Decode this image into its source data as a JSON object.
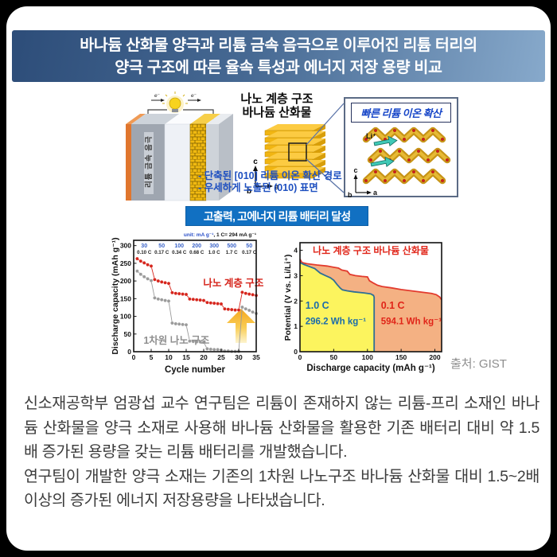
{
  "canvas": {
    "outer_bg": "#000000",
    "card_bg": "#ffffff"
  },
  "header": {
    "line1": "바나듐 산화물 양극과 리튬 금속 음극으로 이루어진 리튬 터리의",
    "line2": "양극 구조에 따른 율속 특성과 에너지 저장 용량 비교",
    "bg_left": "#2d4d79",
    "bg_right": "#87a9cb",
    "text_color": "#ffffff"
  },
  "figure": {
    "battery": {
      "anode_label": "리튬 금속 음극",
      "electron_label": "e⁻"
    },
    "nano_label": {
      "line1": "나노 계층 구조",
      "line2": "바나듐 산화물"
    },
    "axes": {
      "a": "a",
      "b": "b",
      "c": "c"
    },
    "diffusion": {
      "title": "빠른 리튬 이온 확산",
      "li_label": "Li⁺"
    },
    "bullets": [
      "- 단축된 [010] 리튬 이온 확산 경로",
      "- 우세하게 노출된 (010) 표면"
    ],
    "banner": {
      "text": "고출력, 고에너지 리튬 배터리 달성",
      "bg": "#1170c2"
    },
    "source": "출처: GIST"
  },
  "chart_data": [
    {
      "id": "cycle-chart",
      "type": "scatter",
      "xlabel": "Cycle number",
      "ylabel": "Discharge capacity (mAh g⁻¹)",
      "xlim": [
        0,
        35
      ],
      "ylim": [
        0,
        315
      ],
      "xticks": [
        0,
        5,
        10,
        15,
        20,
        25,
        30,
        35
      ],
      "yticks": [
        0,
        50,
        100,
        150,
        200,
        250,
        300
      ],
      "grid": false,
      "unit_note_blue": "unit: mA g⁻¹",
      "unit_note_black": ", 1 C= 294 mA g⁻¹",
      "rate_labels": {
        "centers": [
          3,
          8,
          13,
          18,
          23,
          28,
          33
        ],
        "rates": [
          "30",
          "50",
          "100",
          "200",
          "300",
          "500",
          "50"
        ],
        "c_rates": [
          "0.10 C",
          "0.17 C",
          "0.34 C",
          "0.68 C",
          "1.0 C",
          "1.7 C",
          "0.17 C"
        ]
      },
      "series": [
        {
          "name": "1차원 나노 구조",
          "color": "#9b9b9b",
          "label_color": "#8f8f8f",
          "label_pos": [
            2.8,
            22
          ],
          "label_anchor": "start",
          "points": [
            [
              1,
              228
            ],
            [
              2,
              219
            ],
            [
              3,
              212
            ],
            [
              4,
              206
            ],
            [
              5,
              201
            ],
            [
              6,
              152
            ],
            [
              7,
              149
            ],
            [
              8,
              147
            ],
            [
              9,
              145
            ],
            [
              10,
              143
            ],
            [
              11,
              81
            ],
            [
              12,
              79
            ],
            [
              13,
              78
            ],
            [
              14,
              77
            ],
            [
              15,
              76
            ],
            [
              16,
              30
            ],
            [
              17,
              29
            ],
            [
              18,
              28
            ],
            [
              19,
              28
            ],
            [
              20,
              27
            ],
            [
              21,
              8
            ],
            [
              22,
              7
            ],
            [
              23,
              6
            ],
            [
              24,
              6
            ],
            [
              25,
              5
            ],
            [
              26,
              2
            ],
            [
              27,
              2
            ],
            [
              28,
              1
            ],
            [
              29,
              1
            ],
            [
              30,
              1
            ],
            [
              31,
              126
            ],
            [
              32,
              121
            ],
            [
              33,
              117
            ],
            [
              34,
              112
            ],
            [
              35,
              108
            ]
          ]
        },
        {
          "name": "나노 계층 구조",
          "color": "#d6251c",
          "label_color": "#d6251c",
          "label_pos": [
            28.5,
            184
          ],
          "label_anchor": "middle",
          "points": [
            [
              1,
              263
            ],
            [
              2,
              256
            ],
            [
              3,
              251
            ],
            [
              4,
              246
            ],
            [
              5,
              242
            ],
            [
              6,
              204
            ],
            [
              7,
              200
            ],
            [
              8,
              197
            ],
            [
              9,
              195
            ],
            [
              10,
              193
            ],
            [
              11,
              167
            ],
            [
              12,
              165
            ],
            [
              13,
              164
            ],
            [
              14,
              163
            ],
            [
              15,
              162
            ],
            [
              16,
              149
            ],
            [
              17,
              148
            ],
            [
              18,
              147
            ],
            [
              19,
              146
            ],
            [
              20,
              145
            ],
            [
              21,
              139
            ],
            [
              22,
              138
            ],
            [
              23,
              137
            ],
            [
              24,
              136
            ],
            [
              25,
              135
            ],
            [
              26,
              121
            ],
            [
              27,
              120
            ],
            [
              28,
              119
            ],
            [
              29,
              118
            ],
            [
              30,
              118
            ],
            [
              31,
              168
            ],
            [
              32,
              165
            ],
            [
              33,
              163
            ],
            [
              34,
              161
            ],
            [
              35,
              159
            ]
          ]
        }
      ],
      "arrow_colors": {
        "top": "#f5a71e",
        "mid": "#f9cd55",
        "bottom": "#fdf4cf"
      }
    },
    {
      "id": "potential-chart",
      "type": "area",
      "title": "나노 계층 구조 바나듐 산화물",
      "title_color": "#e02519",
      "xlabel": "Discharge capacity (mAh g⁻¹)",
      "ylabel": "Potential (V vs. Li/Li⁺)",
      "xlim": [
        0,
        210
      ],
      "ylim": [
        0,
        4.3
      ],
      "xticks": [
        0,
        50,
        100,
        150,
        200
      ],
      "yticks": [
        0,
        1,
        2,
        3,
        4
      ],
      "grid": false,
      "series": [
        {
          "name": "0.1 C",
          "energy": "594.1 Wh kg⁻¹",
          "line_color": "#e23b2e",
          "fill_color": "#f4b183",
          "label_color": "#e02519",
          "label_pos": [
            120,
            1.7
          ],
          "points": [
            [
              0,
              3.65
            ],
            [
              3,
              3.52
            ],
            [
              10,
              3.47
            ],
            [
              25,
              3.42
            ],
            [
              40,
              3.38
            ],
            [
              50,
              3.33
            ],
            [
              57,
              3.3
            ],
            [
              62,
              3.22
            ],
            [
              70,
              3.18
            ],
            [
              74,
              3.05
            ],
            [
              82,
              3.0
            ],
            [
              92,
              2.97
            ],
            [
              100,
              2.95
            ],
            [
              103,
              2.8
            ],
            [
              108,
              2.72
            ],
            [
              115,
              2.62
            ],
            [
              122,
              2.57
            ],
            [
              135,
              2.52
            ],
            [
              150,
              2.45
            ],
            [
              165,
              2.4
            ],
            [
              180,
              2.35
            ],
            [
              195,
              2.3
            ],
            [
              202,
              2.25
            ],
            [
              207,
              2.16
            ],
            [
              210,
              2.05
            ]
          ]
        },
        {
          "name": "1.0 C",
          "energy": "296.2 Wh kg⁻¹",
          "line_color": "#2e6f96",
          "fill_color": "#fcf45e",
          "label_color": "#1b6cab",
          "label_pos": [
            8,
            1.7
          ],
          "points": [
            [
              0,
              3.52
            ],
            [
              5,
              3.45
            ],
            [
              15,
              3.35
            ],
            [
              22,
              3.28
            ],
            [
              30,
              3.1
            ],
            [
              38,
              3.0
            ],
            [
              45,
              2.92
            ],
            [
              50,
              2.82
            ],
            [
              55,
              2.65
            ],
            [
              60,
              2.5
            ],
            [
              63,
              2.44
            ],
            [
              70,
              2.4
            ],
            [
              80,
              2.36
            ],
            [
              95,
              2.32
            ],
            [
              105,
              2.28
            ],
            [
              109,
              2.22
            ],
            [
              110,
              2.15
            ],
            [
              110,
              0
            ]
          ]
        }
      ]
    }
  ],
  "body": {
    "paragraphs": [
      "신소재공학부 엄광섭 교수 연구팀은 리튬이 존재하지 않는 리튬-프리 소재인 바나듐 산화물을 양극 소재로 사용해 바나듐 산화물을 활용한 기존 배터리 대비 약 1.5배 증가된 용량을 갖는 리튬 배터리를 개발했습니다.",
      "연구팀이 개발한 양극 소재는 기존의 1차원 나노구조 바나듐 산화물 대비 1.5~2배 이상의 증가된 에너지 저장용량을 나타냈습니다."
    ]
  }
}
